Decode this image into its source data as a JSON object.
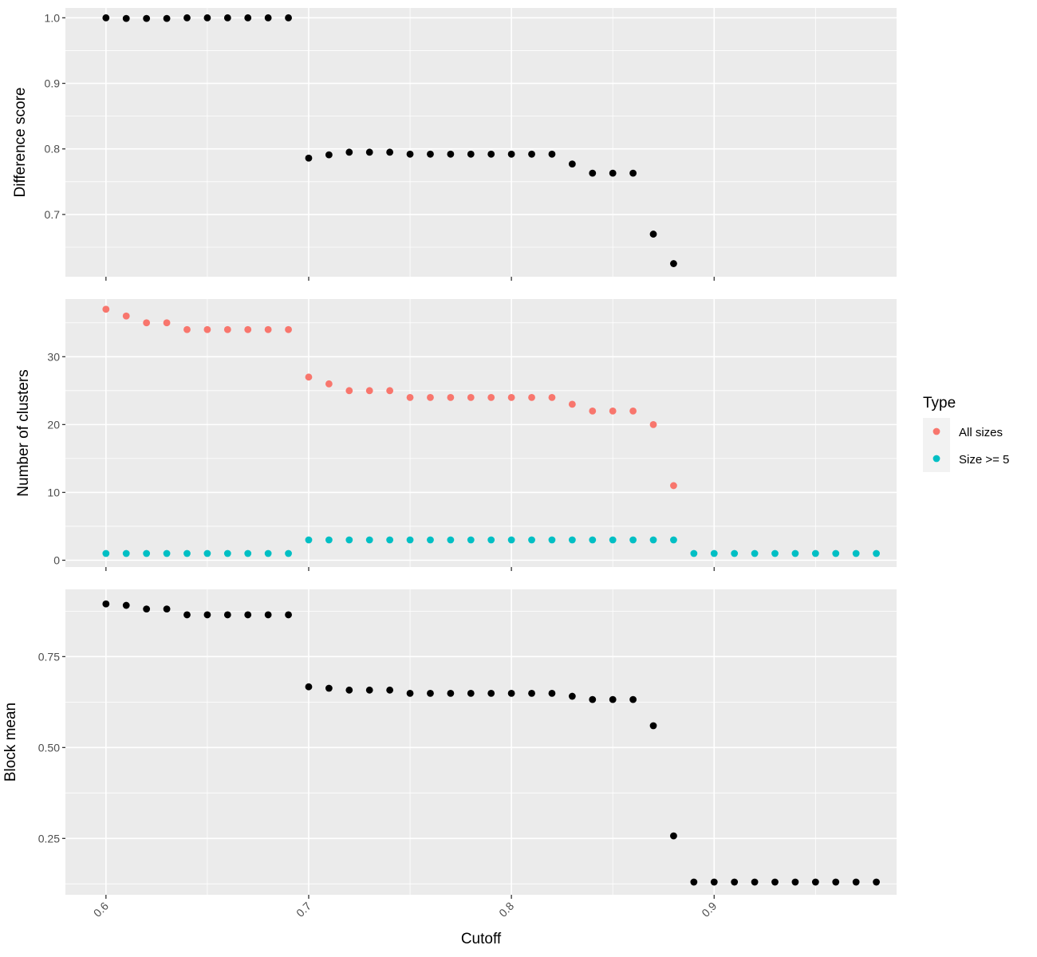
{
  "chart_data": {
    "type": "scatter",
    "xlabel": "Cutoff",
    "xlim": [
      0.58,
      0.99
    ],
    "x_ticks": [
      0.6,
      0.7,
      0.8,
      0.9
    ],
    "x_tick_labels": [
      "0.6",
      "0.7",
      "0.8",
      "0.9"
    ],
    "grid": true,
    "legend": {
      "title": "Type",
      "placement": "right",
      "entries": [
        {
          "name": "All sizes",
          "color": "#F8766D"
        },
        {
          "name": "Size >= 5",
          "color": "#00BFC4"
        }
      ]
    },
    "panels": [
      {
        "ylabel": "Difference score",
        "ylim": [
          0.605,
          1.015
        ],
        "y_ticks": [
          0.7,
          0.8,
          0.9,
          1.0
        ],
        "y_tick_labels": [
          "0.7",
          "0.8",
          "0.9",
          "1.0"
        ],
        "series": [
          {
            "color": "#000000",
            "x": [
              0.6,
              0.61,
              0.62,
              0.63,
              0.64,
              0.65,
              0.66,
              0.67,
              0.68,
              0.69,
              0.7,
              0.71,
              0.72,
              0.73,
              0.74,
              0.75,
              0.76,
              0.77,
              0.78,
              0.79,
              0.8,
              0.81,
              0.82,
              0.83,
              0.84,
              0.85,
              0.86,
              0.87,
              0.88
            ],
            "y": [
              1.0,
              0.999,
              0.999,
              0.999,
              1.0,
              1.0,
              1.0,
              1.0,
              1.0,
              1.0,
              0.786,
              0.791,
              0.795,
              0.795,
              0.795,
              0.792,
              0.792,
              0.792,
              0.792,
              0.792,
              0.792,
              0.792,
              0.792,
              0.777,
              0.763,
              0.763,
              0.763,
              0.67,
              0.625
            ]
          }
        ]
      },
      {
        "ylabel": "Number of clusters",
        "ylim": [
          -1,
          38.5
        ],
        "y_ticks": [
          0,
          10,
          20,
          30
        ],
        "y_tick_labels": [
          "0",
          "10",
          "20",
          "30"
        ],
        "series": [
          {
            "name": "All sizes",
            "color": "#F8766D",
            "x": [
              0.6,
              0.61,
              0.62,
              0.63,
              0.64,
              0.65,
              0.66,
              0.67,
              0.68,
              0.69,
              0.7,
              0.71,
              0.72,
              0.73,
              0.74,
              0.75,
              0.76,
              0.77,
              0.78,
              0.79,
              0.8,
              0.81,
              0.82,
              0.83,
              0.84,
              0.85,
              0.86,
              0.87,
              0.88
            ],
            "y": [
              37,
              36,
              35,
              35,
              34,
              34,
              34,
              34,
              34,
              34,
              27,
              26,
              25,
              25,
              25,
              24,
              24,
              24,
              24,
              24,
              24,
              24,
              24,
              23,
              22,
              22,
              22,
              20,
              11
            ]
          },
          {
            "name": "Size >= 5",
            "color": "#00BFC4",
            "x": [
              0.6,
              0.61,
              0.62,
              0.63,
              0.64,
              0.65,
              0.66,
              0.67,
              0.68,
              0.69,
              0.7,
              0.71,
              0.72,
              0.73,
              0.74,
              0.75,
              0.76,
              0.77,
              0.78,
              0.79,
              0.8,
              0.81,
              0.82,
              0.83,
              0.84,
              0.85,
              0.86,
              0.87,
              0.88,
              0.89,
              0.9,
              0.91,
              0.92,
              0.93,
              0.94,
              0.95,
              0.96,
              0.97,
              0.98
            ],
            "y": [
              1,
              1,
              1,
              1,
              1,
              1,
              1,
              1,
              1,
              1,
              3,
              3,
              3,
              3,
              3,
              3,
              3,
              3,
              3,
              3,
              3,
              3,
              3,
              3,
              3,
              3,
              3,
              3,
              3,
              1,
              1,
              1,
              1,
              1,
              1,
              1,
              1,
              1,
              1
            ]
          }
        ]
      },
      {
        "ylabel": "Block mean",
        "ylim": [
          0.095,
          0.935
        ],
        "y_ticks": [
          0.25,
          0.5,
          0.75
        ],
        "y_tick_labels": [
          "0.25",
          "0.50",
          "0.75"
        ],
        "series": [
          {
            "color": "#000000",
            "x": [
              0.6,
              0.61,
              0.62,
              0.63,
              0.64,
              0.65,
              0.66,
              0.67,
              0.68,
              0.69,
              0.7,
              0.71,
              0.72,
              0.73,
              0.74,
              0.75,
              0.76,
              0.77,
              0.78,
              0.79,
              0.8,
              0.81,
              0.82,
              0.83,
              0.84,
              0.85,
              0.86,
              0.87,
              0.88,
              0.89,
              0.9,
              0.91,
              0.92,
              0.93,
              0.94,
              0.95,
              0.96,
              0.97,
              0.98
            ],
            "y": [
              0.895,
              0.891,
              0.881,
              0.881,
              0.865,
              0.865,
              0.865,
              0.865,
              0.865,
              0.865,
              0.667,
              0.663,
              0.658,
              0.658,
              0.658,
              0.649,
              0.649,
              0.649,
              0.649,
              0.649,
              0.649,
              0.649,
              0.649,
              0.641,
              0.632,
              0.632,
              0.632,
              0.56,
              0.257,
              0.13,
              0.13,
              0.13,
              0.13,
              0.13,
              0.13,
              0.13,
              0.13,
              0.13,
              0.13
            ]
          }
        ]
      }
    ]
  }
}
